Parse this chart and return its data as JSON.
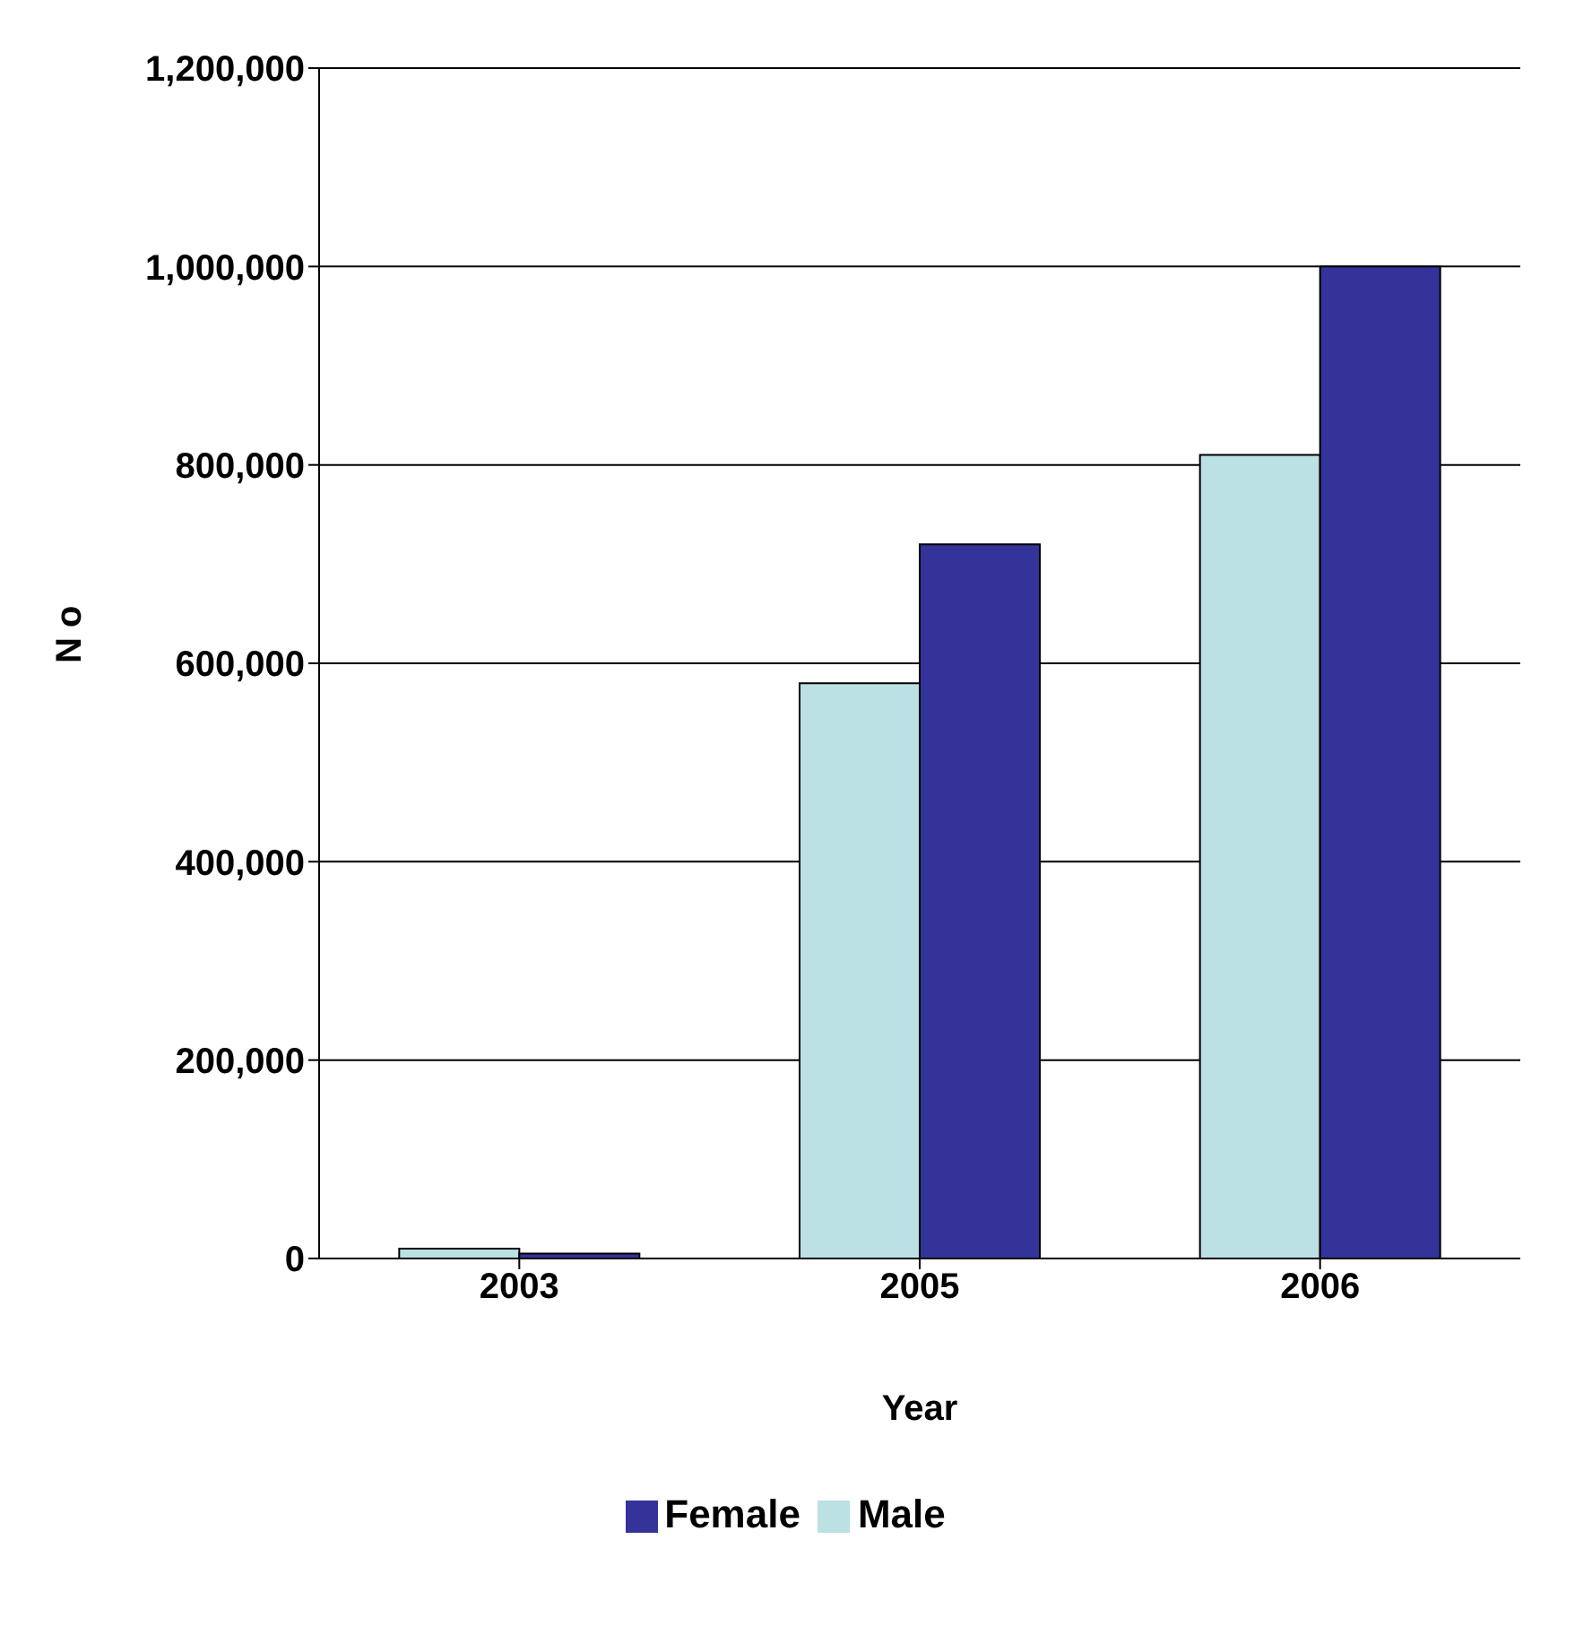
{
  "chart_data": {
    "type": "bar",
    "xlabel": "Year",
    "ylabel": "N o",
    "categories": [
      "2003",
      "2005",
      "2006"
    ],
    "series": [
      {
        "name": "Male",
        "color": "#bbe1e4",
        "values": [
          10000,
          580000,
          810000
        ]
      },
      {
        "name": "Female",
        "color": "#333399",
        "values": [
          5000,
          720000,
          1000000
        ]
      }
    ],
    "ylim": [
      0,
      1200000
    ],
    "yticks": [
      {
        "value": 0,
        "label": "0"
      },
      {
        "value": 200000,
        "label": "200,000"
      },
      {
        "value": 400000,
        "label": "400,000"
      },
      {
        "value": 600000,
        "label": "600,000"
      },
      {
        "value": 800000,
        "label": "800,000"
      },
      {
        "value": 1000000,
        "label": "1,000,000"
      },
      {
        "value": 1200000,
        "label": "1,200,000"
      }
    ],
    "grid": "y",
    "legend": "bottom"
  }
}
